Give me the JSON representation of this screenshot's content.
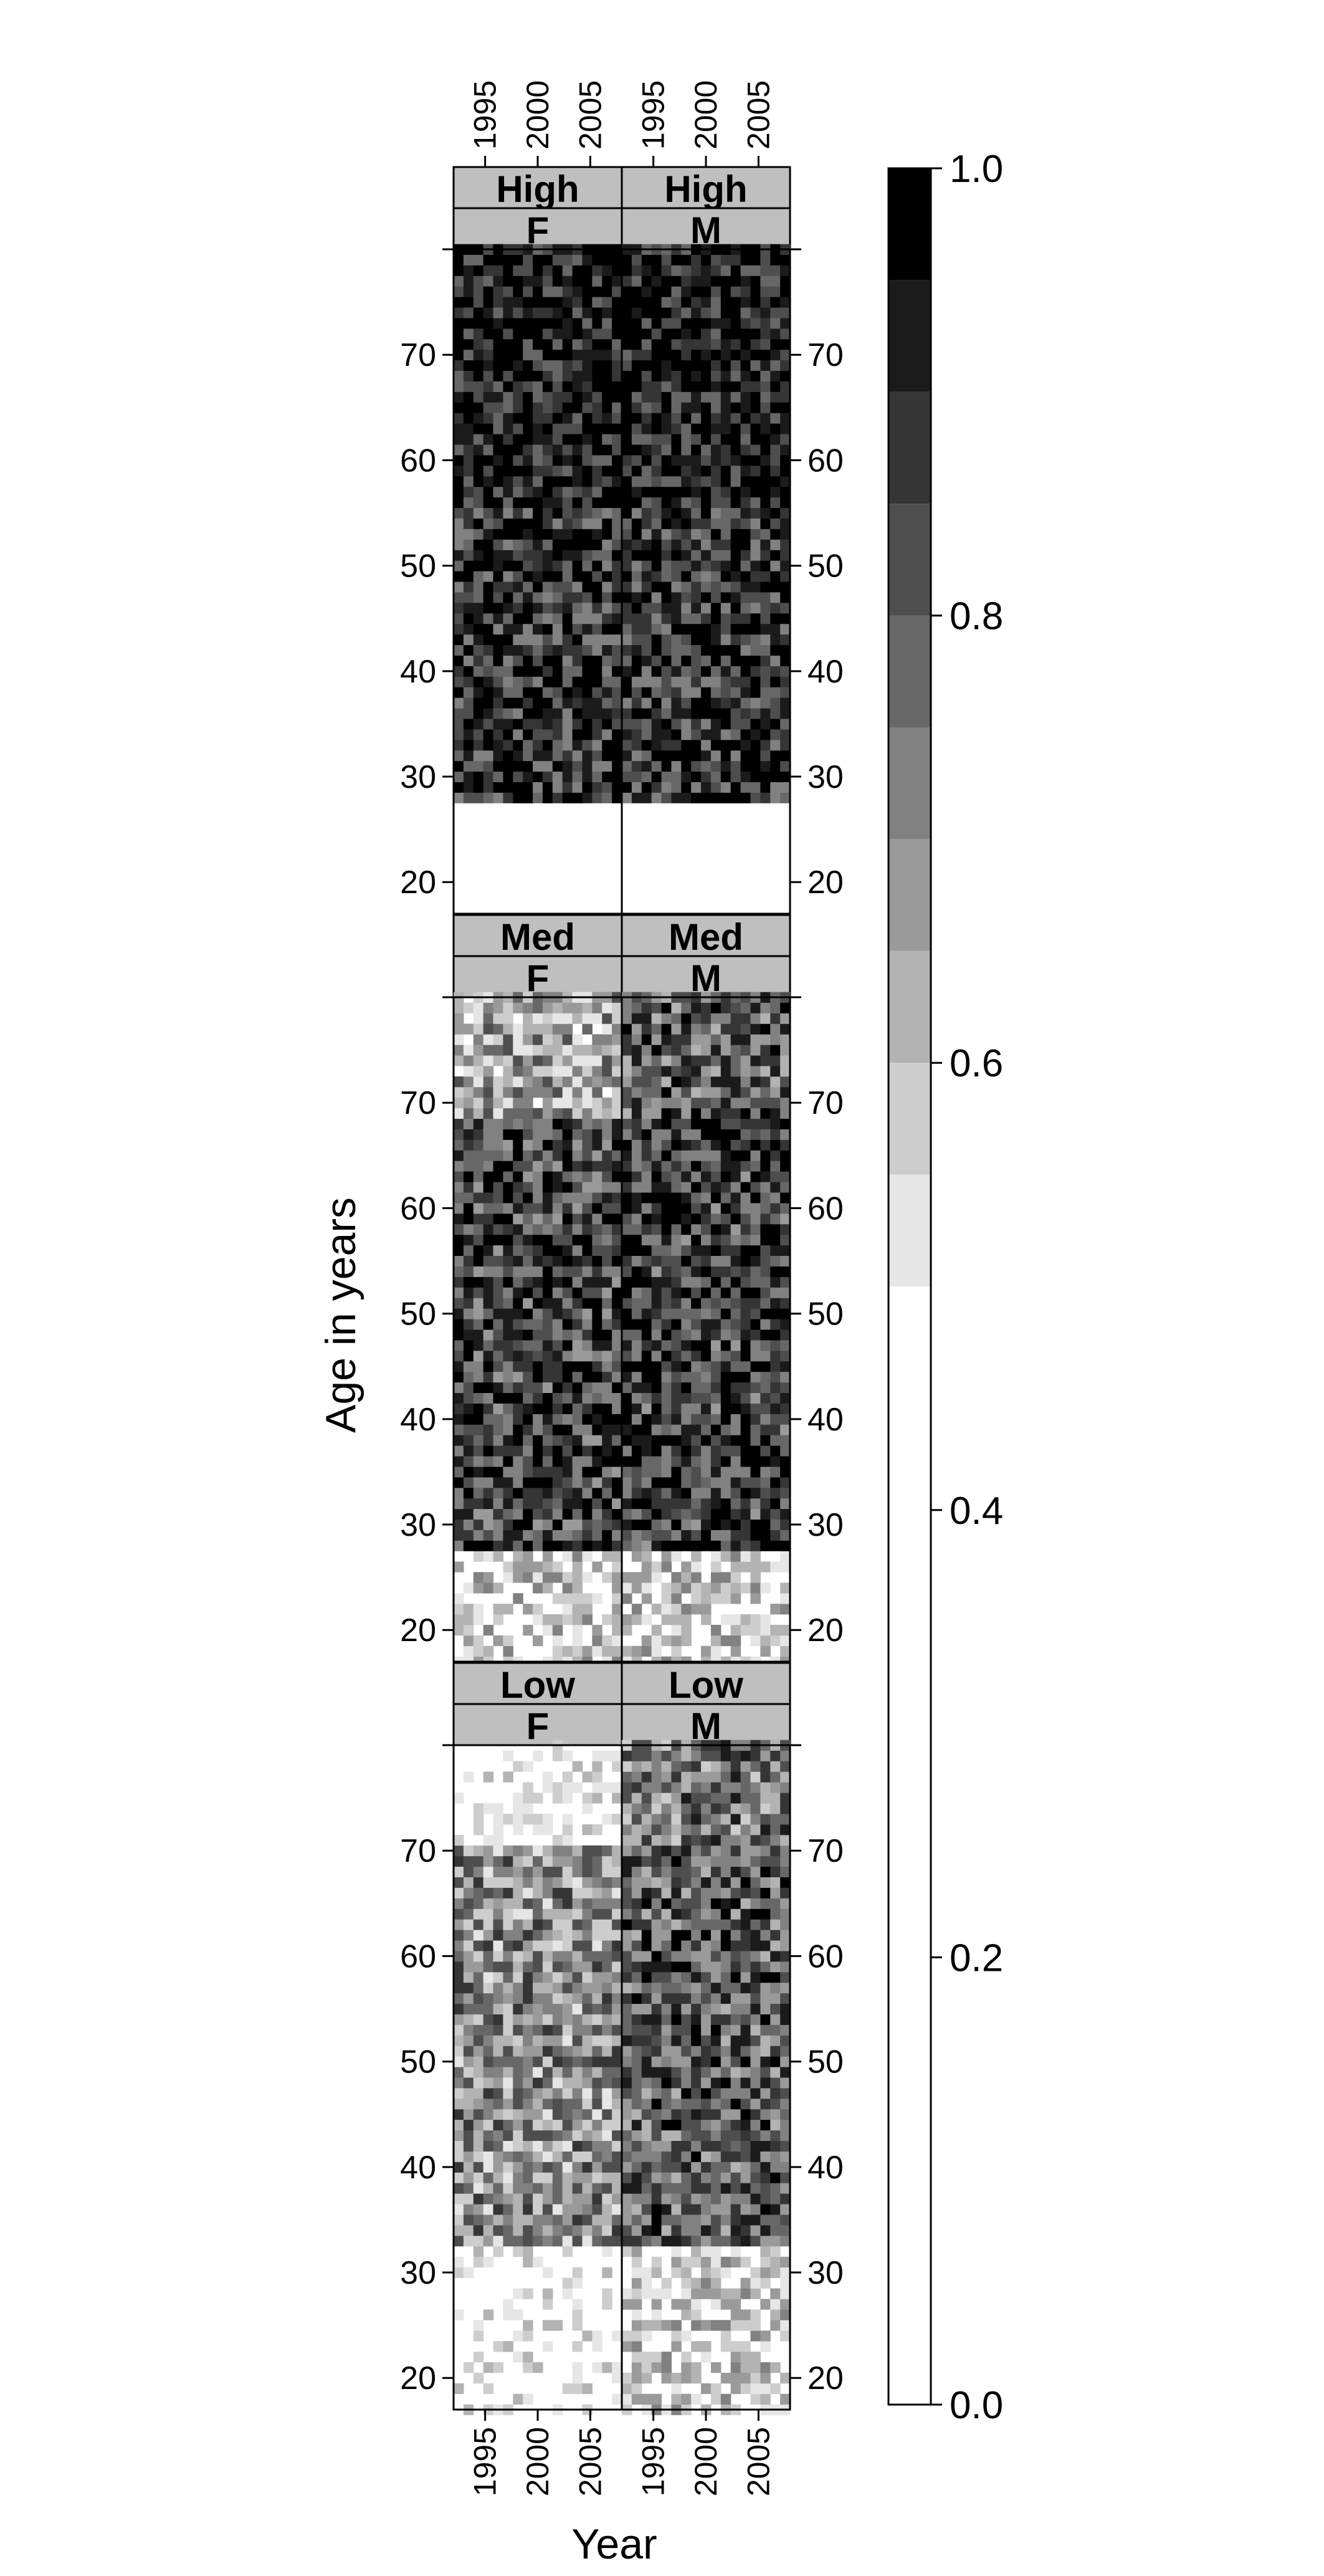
{
  "chart_data": {
    "type": "heatmap",
    "title": "",
    "xlabel": "Year",
    "ylabel": "Age in years",
    "x_range": [
      1992,
      2008
    ],
    "y_range": [
      17,
      80
    ],
    "x_ticks": [
      1995,
      2000,
      2005
    ],
    "y_ticks": [
      20,
      30,
      40,
      50,
      60,
      70
    ],
    "colorbar": {
      "range": [
        0,
        1
      ],
      "ticks": [
        "0.0",
        "0.2",
        "0.4",
        "0.6",
        "0.8",
        "1.0"
      ],
      "levels": [
        {
          "from": 0.0,
          "to": 0.5,
          "color": "#ffffff"
        },
        {
          "from": 0.5,
          "to": 0.55,
          "color": "#e6e6e6"
        },
        {
          "from": 0.55,
          "to": 0.6,
          "color": "#cdcdcd"
        },
        {
          "from": 0.6,
          "to": 0.65,
          "color": "#b3b3b3"
        },
        {
          "from": 0.65,
          "to": 0.7,
          "color": "#9a9a9a"
        },
        {
          "from": 0.7,
          "to": 0.75,
          "color": "#818181"
        },
        {
          "from": 0.75,
          "to": 0.8,
          "color": "#676767"
        },
        {
          "from": 0.8,
          "to": 0.85,
          "color": "#4e4e4e"
        },
        {
          "from": 0.85,
          "to": 0.9,
          "color": "#353535"
        },
        {
          "from": 0.9,
          "to": 0.95,
          "color": "#1b1b1b"
        },
        {
          "from": 0.95,
          "to": 1.0,
          "color": "#000000"
        }
      ]
    },
    "panels": [
      {
        "group": "High",
        "sex": "F",
        "summary": {
          "age_17_27": 0.3,
          "age_28_55": 0.88,
          "age_56_80": 0.93
        }
      },
      {
        "group": "High",
        "sex": "M",
        "summary": {
          "age_17_27": 0.3,
          "age_28_55": 0.88,
          "age_56_80": 0.93
        }
      },
      {
        "group": "Med",
        "sex": "F",
        "summary": {
          "age_17_27": 0.55,
          "age_28_68": 0.85,
          "age_69_80": 0.65
        }
      },
      {
        "group": "Med",
        "sex": "M",
        "summary": {
          "age_17_27": 0.55,
          "age_28_68": 0.87,
          "age_69_80": 0.8
        }
      },
      {
        "group": "Low",
        "sex": "F",
        "summary": {
          "age_17_32": 0.45,
          "age_33_70": 0.7,
          "age_71_80": 0.45
        }
      },
      {
        "group": "Low",
        "sex": "M",
        "summary": {
          "age_17_32": 0.55,
          "age_33_70": 0.8,
          "age_71_80": 0.75
        }
      }
    ]
  }
}
